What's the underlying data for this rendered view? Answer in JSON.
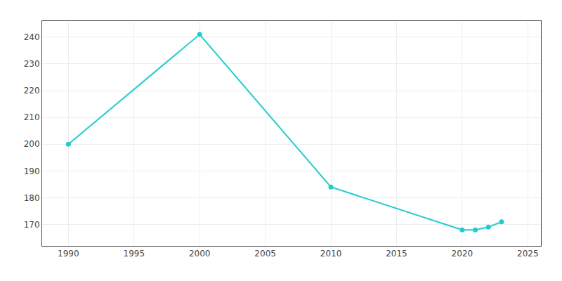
{
  "chart_data": {
    "type": "line",
    "x": [
      1990,
      2000,
      2010,
      2020,
      2021,
      2022,
      2023
    ],
    "values": [
      200,
      241,
      184,
      168,
      168,
      169,
      171
    ],
    "color": "#22CCCC",
    "marker": "circle",
    "xlim": [
      1988,
      2026
    ],
    "ylim": [
      162,
      246
    ],
    "xticks": [
      1990,
      1995,
      2000,
      2005,
      2010,
      2015,
      2020,
      2025
    ],
    "yticks": [
      170,
      180,
      190,
      200,
      210,
      220,
      230,
      240
    ],
    "grid": true
  }
}
